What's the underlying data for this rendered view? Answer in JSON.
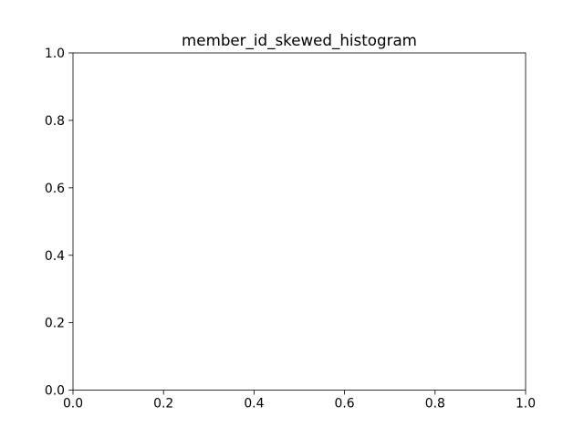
{
  "chart_data": {
    "type": "bar",
    "title": "member_id_skewed_histogram",
    "xlabel": "",
    "ylabel": "",
    "xlim": [
      0,
      1
    ],
    "ylim": [
      0,
      1
    ],
    "x_ticks": [
      "0.0",
      "0.2",
      "0.4",
      "0.6",
      "0.8",
      "1.0"
    ],
    "y_ticks": [
      "0.0",
      "0.2",
      "0.4",
      "0.6",
      "0.8",
      "1.0"
    ],
    "grid": false,
    "categories": [],
    "values": []
  }
}
